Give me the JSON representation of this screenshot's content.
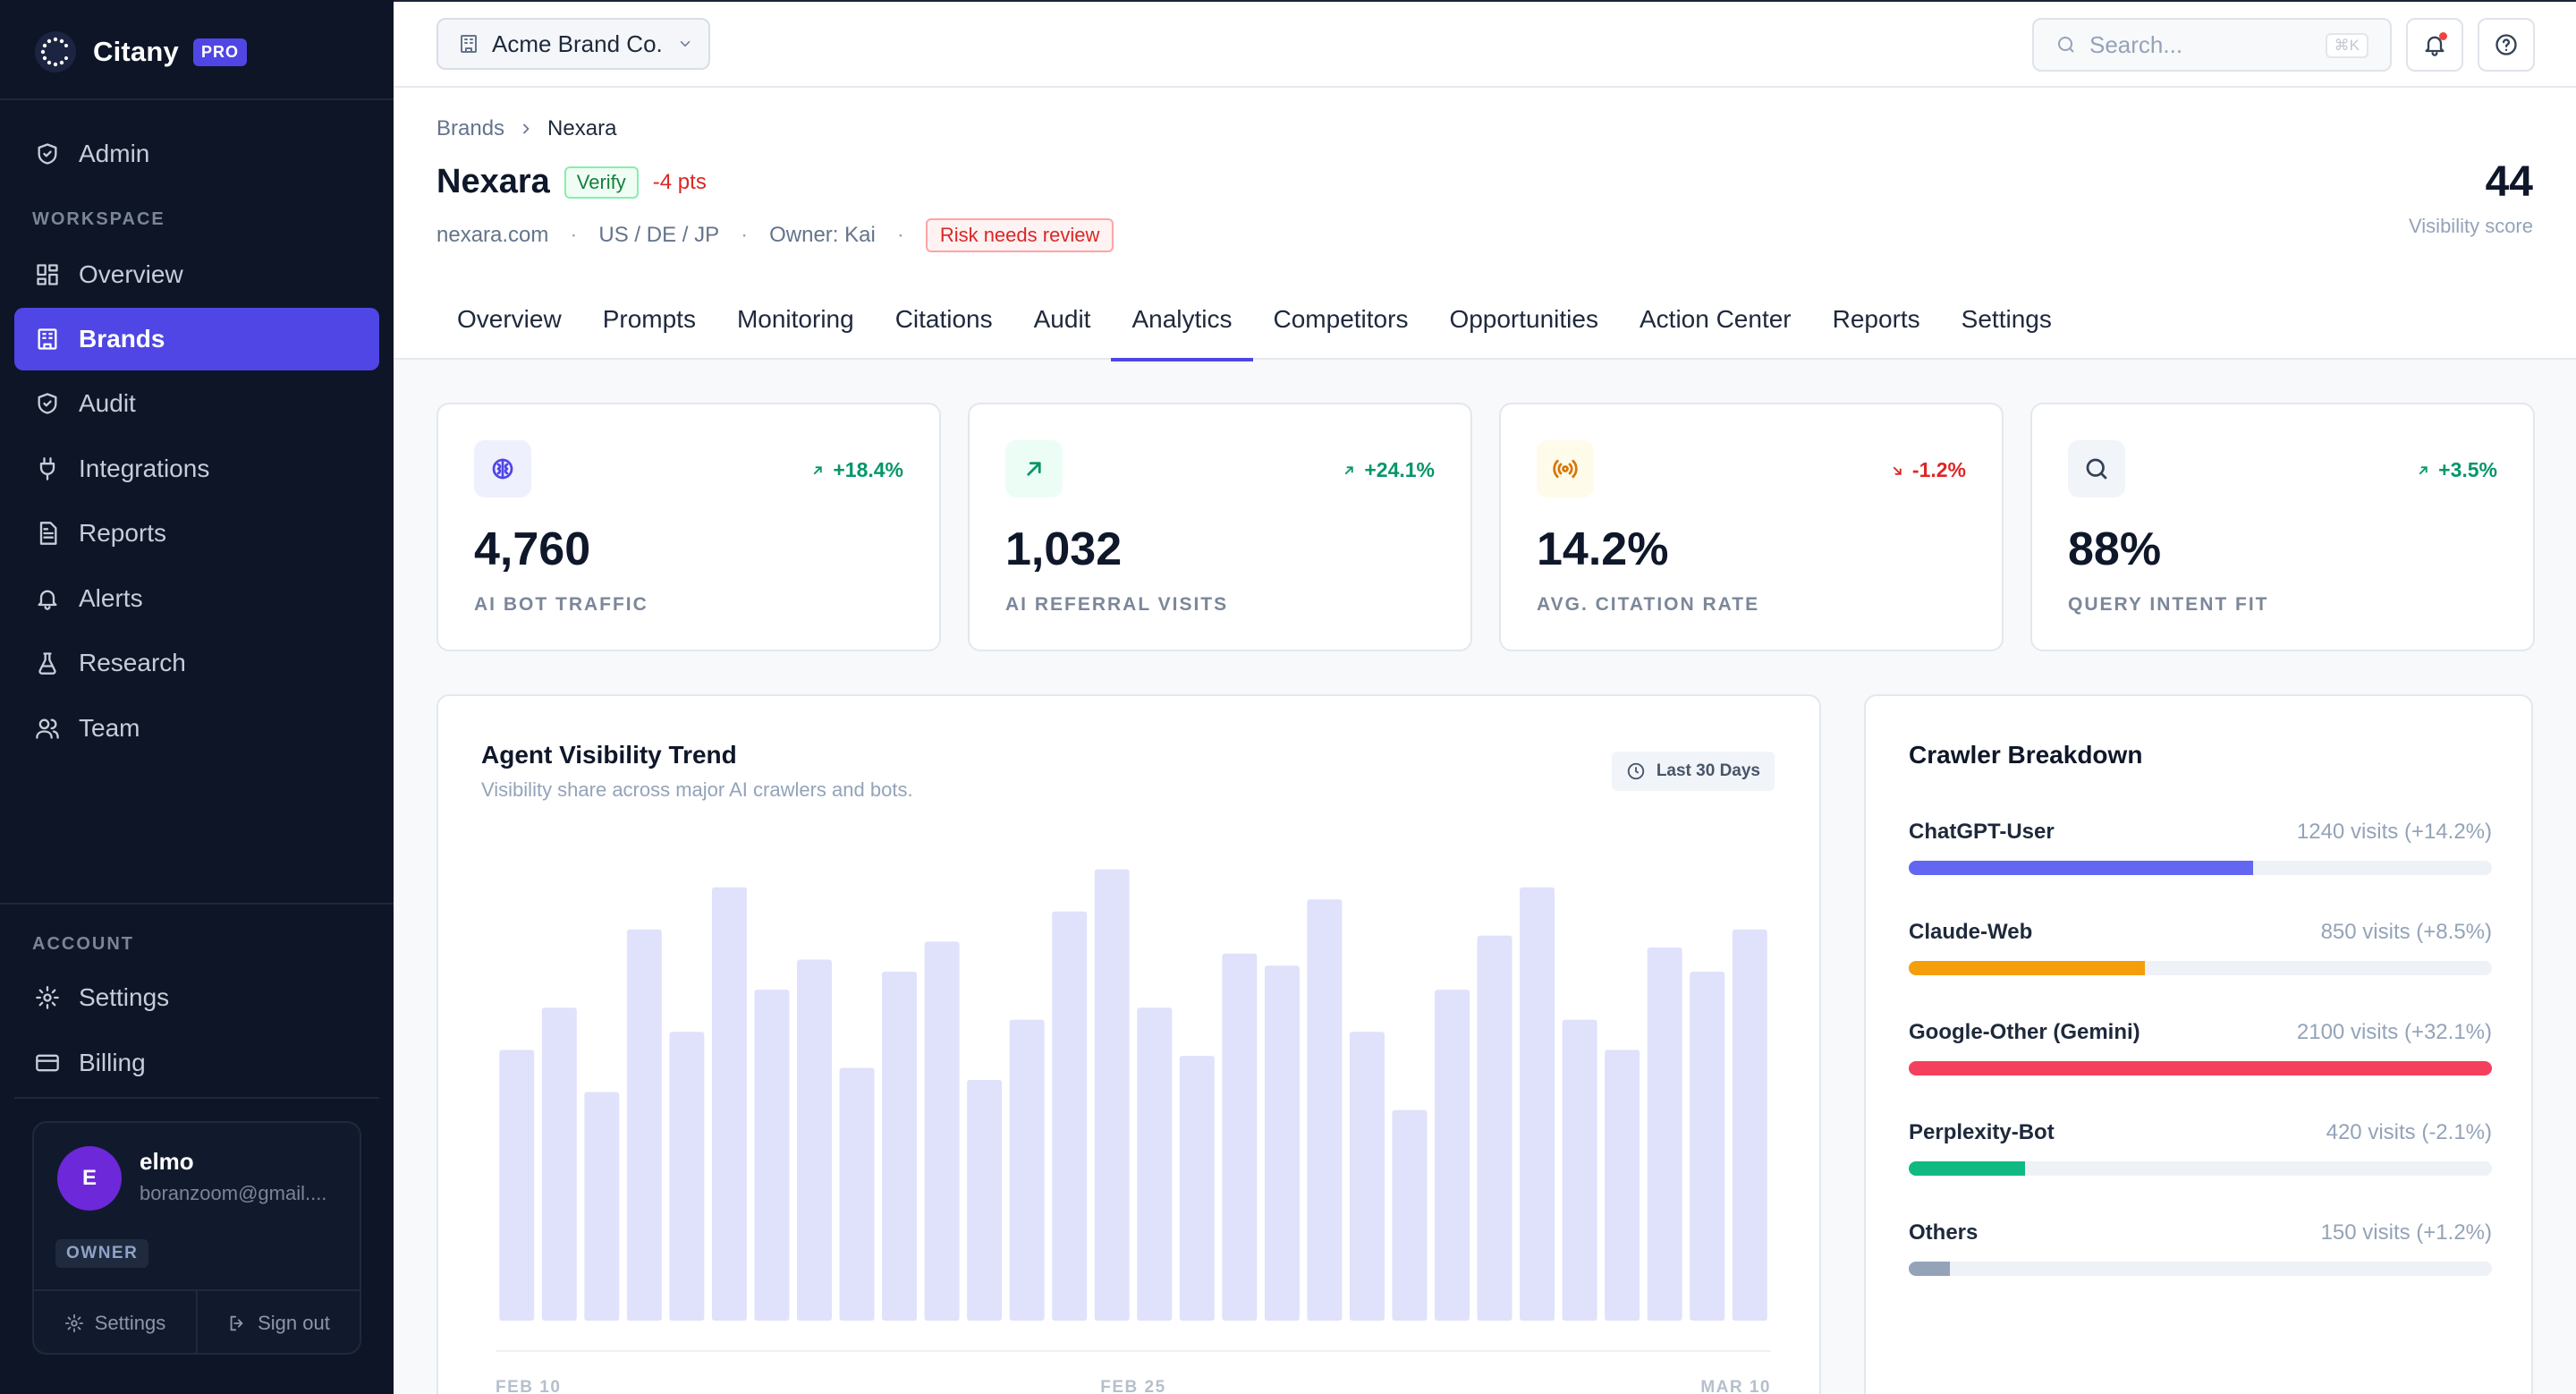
{
  "app": {
    "name": "Citany",
    "plan_badge": "PRO"
  },
  "sidebar": {
    "admin_label": "Admin",
    "workspace_label": "WORKSPACE",
    "items": [
      {
        "label": "Overview",
        "icon": "grid-icon"
      },
      {
        "label": "Brands",
        "icon": "building-icon",
        "active": true
      },
      {
        "label": "Audit",
        "icon": "shield-icon"
      },
      {
        "label": "Integrations",
        "icon": "plug-icon"
      },
      {
        "label": "Reports",
        "icon": "document-icon"
      },
      {
        "label": "Alerts",
        "icon": "bell-icon"
      },
      {
        "label": "Research",
        "icon": "flask-icon"
      },
      {
        "label": "Team",
        "icon": "users-icon"
      }
    ],
    "account_label": "ACCOUNT",
    "account_items": [
      {
        "label": "Settings",
        "icon": "gear-icon"
      },
      {
        "label": "Billing",
        "icon": "credit-card-icon"
      }
    ],
    "user": {
      "initial": "E",
      "name": "elmo",
      "email": "boranzoom@gmail....",
      "role": "OWNER",
      "settings_label": "Settings",
      "signout_label": "Sign out"
    }
  },
  "topbar": {
    "brand_selector": "Acme Brand Co.",
    "search_placeholder": "Search...",
    "search_shortcut": "⌘K"
  },
  "header": {
    "breadcrumb": [
      "Brands",
      "Nexara"
    ],
    "title": "Nexara",
    "verify_label": "Verify",
    "points_change": "-4 pts",
    "domain": "nexara.com",
    "regions": "US / DE / JP",
    "owner": "Owner: Kai",
    "risk_label": "Risk needs review",
    "visibility_score": "44",
    "visibility_score_label": "Visibility score",
    "tabs": [
      "Overview",
      "Prompts",
      "Monitoring",
      "Citations",
      "Audit",
      "Analytics",
      "Competitors",
      "Opportunities",
      "Action Center",
      "Reports",
      "Settings"
    ],
    "active_tab": "Analytics"
  },
  "kpis": [
    {
      "value": "4,760",
      "label": "AI BOT TRAFFIC",
      "delta": "+18.4%",
      "trend": "up",
      "icon": "brain-icon",
      "icon_color": "#4f46e5",
      "icon_bg": "#eef0fd"
    },
    {
      "value": "1,032",
      "label": "AI REFERRAL VISITS",
      "delta": "+24.1%",
      "trend": "up",
      "icon": "arrow-up-right-icon",
      "icon_color": "#059669",
      "icon_bg": "#ecfdf5"
    },
    {
      "value": "14.2%",
      "label": "AVG. CITATION RATE",
      "delta": "-1.2%",
      "trend": "down",
      "icon": "broadcast-icon",
      "icon_color": "#d97706",
      "icon_bg": "#fffbeb"
    },
    {
      "value": "88%",
      "label": "QUERY INTENT FIT",
      "delta": "+3.5%",
      "trend": "up",
      "icon": "search-icon",
      "icon_color": "#334155",
      "icon_bg": "#f1f5f9"
    }
  ],
  "colors": {
    "accent": "#4f46e5",
    "positive": "#059669",
    "negative": "#dc2626",
    "bar": "#e0e1fb"
  },
  "chart": {
    "title": "Agent Visibility Trend",
    "subtitle": "Visibility share across major AI crawlers and bots.",
    "range_label": "Last 30 Days"
  },
  "chart_data": {
    "type": "bar",
    "title": "Agent Visibility Trend",
    "ylim": [
      0,
      80
    ],
    "values": [
      45,
      52,
      38,
      65,
      48,
      72,
      55,
      60,
      42,
      58,
      63,
      40,
      50,
      68,
      75,
      52,
      44,
      61,
      59,
      70,
      48,
      35,
      55,
      64,
      72,
      50,
      45,
      62,
      58,
      65
    ],
    "x_tick_labels": [
      "FEB 10",
      "FEB 25",
      "MAR 10"
    ]
  },
  "crawler": {
    "title": "Crawler Breakdown",
    "rows": [
      {
        "name": "ChatGPT-User",
        "visits": "1240 visits (+14.2%)",
        "share": 0.59,
        "color": "#6366f1"
      },
      {
        "name": "Claude-Web",
        "visits": "850 visits (+8.5%)",
        "share": 0.405,
        "color": "#f59e0b"
      },
      {
        "name": "Google-Other (Gemini)",
        "visits": "2100 visits (+32.1%)",
        "share": 1.0,
        "color": "#f43f5e"
      },
      {
        "name": "Perplexity-Bot",
        "visits": "420 visits (-2.1%)",
        "share": 0.2,
        "color": "#10b981"
      },
      {
        "name": "Others",
        "visits": "150 visits (+1.2%)",
        "share": 0.07,
        "color": "#94a3b8"
      }
    ]
  }
}
